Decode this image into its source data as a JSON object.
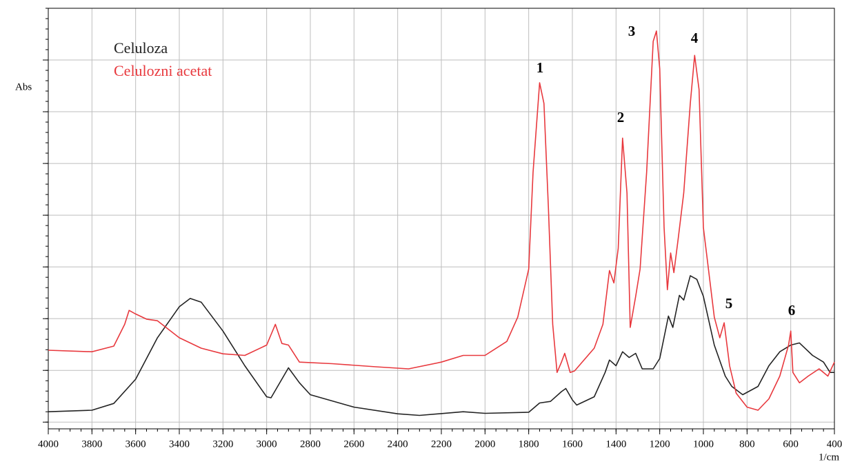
{
  "chart_data": {
    "type": "line",
    "y_label": "Abs",
    "x_label": "1/cm",
    "xlim": [
      4000,
      400
    ],
    "ylim": [
      -0.13,
      8
    ],
    "xticks": [
      4000,
      3800,
      3600,
      3400,
      3200,
      3000,
      2800,
      2600,
      2400,
      2200,
      2000,
      1800,
      1600,
      1400,
      1200,
      1000,
      800,
      600,
      400
    ],
    "yticks": [
      0,
      1,
      2,
      3,
      4,
      5,
      6,
      7
    ],
    "grid": true,
    "annotations": [
      "1",
      "2",
      "3",
      "4",
      "5",
      "6"
    ],
    "series": [
      {
        "name": "Celuloza",
        "color": "#222222",
        "x": [
          4000,
          3800,
          3700,
          3600,
          3500,
          3400,
          3350,
          3300,
          3200,
          3100,
          3000,
          2980,
          2900,
          2850,
          2800,
          2600,
          2400,
          2300,
          2100,
          2000,
          1800,
          1750,
          1700,
          1650,
          1630,
          1600,
          1580,
          1500,
          1450,
          1430,
          1400,
          1370,
          1340,
          1310,
          1280,
          1230,
          1200,
          1160,
          1140,
          1110,
          1090,
          1060,
          1030,
          1000,
          950,
          900,
          870,
          820,
          750,
          700,
          650,
          600,
          560,
          500,
          450,
          420,
          400
        ],
        "values": [
          0.2,
          0.23,
          0.36,
          0.83,
          1.63,
          2.23,
          2.39,
          2.32,
          1.76,
          1.09,
          0.49,
          0.47,
          1.05,
          0.76,
          0.53,
          0.29,
          0.16,
          0.13,
          0.2,
          0.17,
          0.19,
          0.37,
          0.4,
          0.59,
          0.65,
          0.43,
          0.33,
          0.49,
          0.96,
          1.2,
          1.09,
          1.36,
          1.25,
          1.33,
          1.03,
          1.03,
          1.23,
          2.05,
          1.83,
          2.45,
          2.36,
          2.83,
          2.76,
          2.43,
          1.49,
          0.89,
          0.69,
          0.53,
          0.69,
          1.09,
          1.36,
          1.49,
          1.53,
          1.29,
          1.16,
          0.96,
          0.96
        ]
      },
      {
        "name": "Celulozni acetat",
        "color": "#e8383d",
        "x": [
          4000,
          3800,
          3700,
          3650,
          3630,
          3600,
          3550,
          3500,
          3400,
          3300,
          3200,
          3100,
          3000,
          2960,
          2930,
          2900,
          2850,
          2700,
          2500,
          2350,
          2200,
          2100,
          2000,
          1900,
          1850,
          1800,
          1780,
          1750,
          1730,
          1710,
          1690,
          1670,
          1650,
          1635,
          1610,
          1590,
          1500,
          1460,
          1430,
          1410,
          1390,
          1370,
          1350,
          1335,
          1310,
          1290,
          1260,
          1230,
          1215,
          1200,
          1180,
          1165,
          1150,
          1135,
          1115,
          1090,
          1060,
          1040,
          1020,
          1000,
          950,
          925,
          905,
          880,
          850,
          800,
          750,
          700,
          650,
          610,
          600,
          590,
          560,
          520,
          470,
          430,
          400
        ],
        "values": [
          1.39,
          1.36,
          1.47,
          1.89,
          2.16,
          2.09,
          1.99,
          1.96,
          1.63,
          1.43,
          1.32,
          1.29,
          1.49,
          1.89,
          1.52,
          1.49,
          1.16,
          1.13,
          1.07,
          1.03,
          1.16,
          1.29,
          1.29,
          1.56,
          2.03,
          2.96,
          4.83,
          6.56,
          6.16,
          4.16,
          1.89,
          0.96,
          1.16,
          1.33,
          0.96,
          0.99,
          1.43,
          1.89,
          2.93,
          2.69,
          3.36,
          5.49,
          4.43,
          1.83,
          2.43,
          2.96,
          4.83,
          7.36,
          7.56,
          6.83,
          3.76,
          2.56,
          3.27,
          2.89,
          3.56,
          4.43,
          6.16,
          7.09,
          6.43,
          3.76,
          2.03,
          1.63,
          1.92,
          1.09,
          0.56,
          0.29,
          0.23,
          0.45,
          0.89,
          1.49,
          1.76,
          0.96,
          0.76,
          0.89,
          1.03,
          0.89,
          1.16
        ]
      }
    ]
  }
}
